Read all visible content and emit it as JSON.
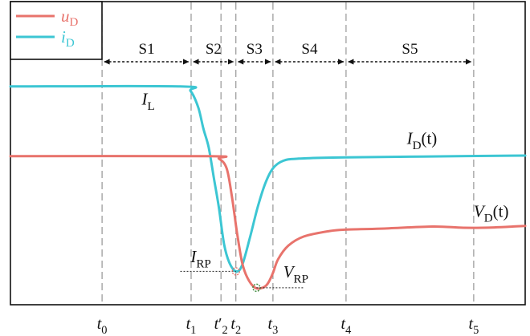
{
  "chart_data": {
    "type": "line",
    "title": "",
    "legend": {
      "position": "top-left",
      "entries": [
        {
          "name": "u",
          "sub": "D",
          "color": "#e8736c"
        },
        {
          "name": "i",
          "sub": "D",
          "color": "#3cc6d3"
        }
      ]
    },
    "x_unit_note": "normalized time, 0 = plot left edge, 100 = plot right edge",
    "y_unit_note": "normalized level, 0 = plot bottom, 100 = plot top",
    "xlim": [
      0,
      100
    ],
    "ylim": [
      0,
      100
    ],
    "time_markers": [
      {
        "base": "t",
        "sub": "0",
        "prime": "",
        "x": 17.8
      },
      {
        "base": "t",
        "sub": "1",
        "prime": "",
        "x": 35.1
      },
      {
        "base": "t",
        "sub": "2",
        "prime": "′",
        "x": 40.9
      },
      {
        "base": "t",
        "sub": "2",
        "prime": "",
        "x": 43.8
      },
      {
        "base": "t",
        "sub": "3",
        "prime": "",
        "x": 51.0
      },
      {
        "base": "t",
        "sub": "4",
        "prime": "",
        "x": 65.2
      },
      {
        "base": "t",
        "sub": "5",
        "prime": "",
        "x": 90.0
      }
    ],
    "stages": [
      {
        "label": "S1",
        "from": 17.8,
        "to": 35.1
      },
      {
        "label": "S2",
        "from": 35.1,
        "to": 43.8
      },
      {
        "label": "S3",
        "from": 43.8,
        "to": 51.0
      },
      {
        "label": "S4",
        "from": 51.0,
        "to": 65.2
      },
      {
        "label": "S5",
        "from": 65.2,
        "to": 90.0
      }
    ],
    "series": [
      {
        "name": "i_D",
        "color": "#3cc6d3",
        "points": [
          [
            0,
            72
          ],
          [
            33,
            72
          ],
          [
            35,
            70.5
          ],
          [
            36.5,
            65
          ],
          [
            37.5,
            58
          ],
          [
            38.5,
            52
          ],
          [
            39.5,
            42
          ],
          [
            40.5,
            32
          ],
          [
            41.5,
            20
          ],
          [
            42.5,
            14
          ],
          [
            43.8,
            11
          ],
          [
            45,
            13
          ],
          [
            46.5,
            22
          ],
          [
            48,
            32
          ],
          [
            49.5,
            40
          ],
          [
            51,
            45
          ],
          [
            53,
            47.5
          ],
          [
            56,
            48.2
          ],
          [
            65,
            48.6
          ],
          [
            80,
            48.9
          ],
          [
            100,
            49.2
          ]
        ]
      },
      {
        "name": "u_D",
        "color": "#e8736c",
        "points": [
          [
            0,
            49
          ],
          [
            38.5,
            49
          ],
          [
            40.5,
            48.2
          ],
          [
            42,
            45
          ],
          [
            43,
            36
          ],
          [
            44,
            24
          ],
          [
            45,
            14
          ],
          [
            46,
            9
          ],
          [
            47.5,
            5.6
          ],
          [
            49,
            5.6
          ],
          [
            50,
            7
          ],
          [
            51,
            10.5
          ],
          [
            52,
            15
          ],
          [
            54,
            19.5
          ],
          [
            57,
            22.5
          ],
          [
            62,
            24.3
          ],
          [
            65.2,
            24.8
          ],
          [
            72,
            25.1
          ],
          [
            82,
            25.8
          ],
          [
            88,
            25.4
          ],
          [
            94,
            25.5
          ],
          [
            100,
            26
          ]
        ]
      }
    ],
    "annotations": [
      {
        "base": "I",
        "sub": "L",
        "suffix": "",
        "x": 25.5,
        "y": 66
      },
      {
        "base": "I",
        "sub": "D",
        "suffix": "(t)",
        "x": 77,
        "y": 53
      },
      {
        "base": "V",
        "sub": "D",
        "suffix": "(t)",
        "x": 90,
        "y": 29
      },
      {
        "base": "I",
        "sub": "RP",
        "suffix": "",
        "x": 35,
        "y": 14
      },
      {
        "base": "V",
        "sub": "RP",
        "suffix": "",
        "x": 53,
        "y": 9
      }
    ],
    "markers": [
      {
        "label": "I_RP",
        "x": 43.8,
        "y": 11,
        "color": "#e8736c",
        "leader_to_x": 33
      },
      {
        "label": "V_RP",
        "x": 47.8,
        "y": 5.6,
        "color": "#3a8a3a",
        "leader_to_x": 57
      }
    ]
  }
}
